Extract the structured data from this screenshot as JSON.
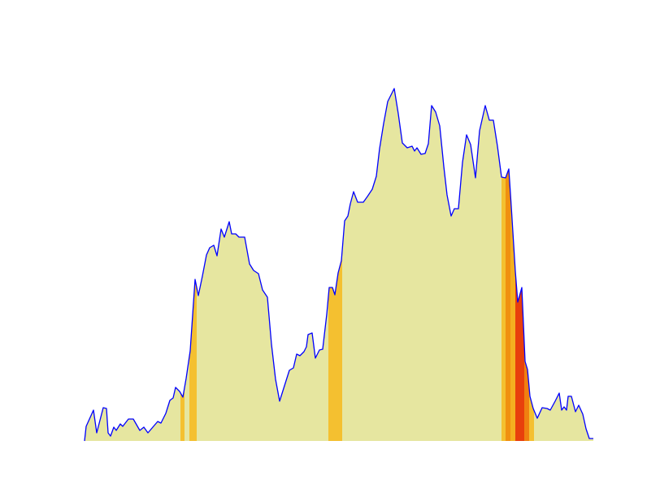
{
  "chart_data": {
    "type": "area",
    "x": [
      0,
      2,
      11,
      15,
      23,
      27,
      29,
      32,
      36,
      39,
      44,
      47,
      54,
      60,
      68,
      73,
      78,
      84,
      90,
      94,
      100,
      105,
      109,
      112,
      117,
      121,
      125,
      130,
      136,
      140,
      145,
      150,
      154,
      159,
      163,
      168,
      172,
      178,
      181,
      186,
      190,
      197,
      203,
      208,
      214,
      219,
      225,
      230,
      235,
      240,
      246,
      252,
      257,
      261,
      265,
      270,
      273,
      275,
      280,
      284,
      289,
      293,
      298,
      301,
      305,
      308,
      312,
      316,
      320,
      324,
      327,
      331,
      336,
      343,
      348,
      354,
      359,
      363,
      368,
      373,
      381,
      386,
      391,
      397,
      403,
      406,
      409,
      414,
      419,
      423,
      427,
      432,
      437,
      442,
      446,
      451,
      455,
      460,
      465,
      470,
      475,
      481,
      486,
      493,
      498,
      503,
      508,
      513,
      518,
      522,
      525,
      530,
      533,
      538,
      542,
      545,
      548,
      552,
      557,
      563,
      569,
      573,
      579,
      584,
      587,
      590,
      593,
      595,
      599,
      604,
      608,
      613,
      617,
      621,
      626
    ],
    "values": [
      0,
      18,
      38,
      10,
      41,
      40,
      10,
      6,
      17,
      13,
      21,
      18,
      27,
      27,
      13,
      17,
      10,
      17,
      24,
      22,
      34,
      50,
      53,
      66,
      61,
      54,
      77,
      111,
      199,
      179,
      203,
      229,
      238,
      241,
      228,
      261,
      251,
      270,
      255,
      255,
      251,
      251,
      218,
      210,
      206,
      186,
      177,
      119,
      76,
      49,
      68,
      87,
      90,
      107,
      105,
      110,
      116,
      131,
      133,
      102,
      112,
      113,
      156,
      189,
      189,
      180,
      207,
      222,
      271,
      277,
      292,
      307,
      294,
      294,
      301,
      310,
      326,
      360,
      391,
      418,
      434,
      403,
      367,
      361,
      363,
      357,
      361,
      353,
      354,
      366,
      413,
      405,
      388,
      338,
      303,
      277,
      286,
      286,
      343,
      377,
      365,
      324,
      382,
      413,
      395,
      395,
      363,
      325,
      324,
      335,
      289,
      209,
      171,
      189,
      98,
      88,
      55,
      40,
      28,
      41,
      40,
      38,
      49,
      59,
      38,
      42,
      38,
      55,
      55,
      36,
      44,
      33,
      15,
      3,
      3
    ],
    "color": "#e6e6a0",
    "line_color": "#0000ff",
    "segments": [
      {
        "start": 118,
        "end": 123,
        "color": "#f4c030"
      },
      {
        "start": 129,
        "end": 138,
        "color": "#f4c030"
      },
      {
        "start": 300,
        "end": 317,
        "color": "#f4c030"
      },
      {
        "start": 513,
        "end": 518,
        "color": "#f4c030"
      },
      {
        "start": 518,
        "end": 524,
        "color": "#f09010"
      },
      {
        "start": 524,
        "end": 530,
        "color": "#f4b020"
      },
      {
        "start": 530,
        "end": 541,
        "color": "#e8400c"
      },
      {
        "start": 541,
        "end": 547,
        "color": "#f08010"
      },
      {
        "start": 547,
        "end": 553,
        "color": "#f4c030"
      }
    ],
    "xlim": [
      0,
      626
    ],
    "ylim": [
      0,
      500
    ]
  }
}
